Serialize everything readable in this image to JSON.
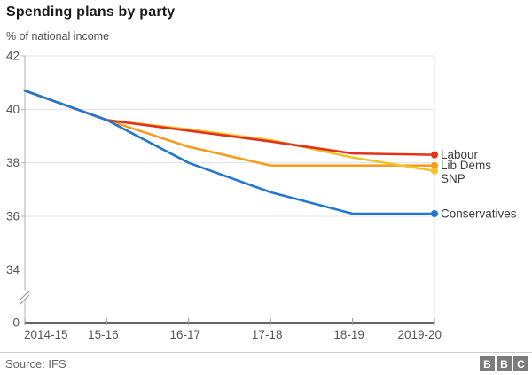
{
  "header": {
    "title": "Spending plans by party",
    "subtitle": "% of national income"
  },
  "footer": {
    "source": "Source: IFS",
    "logo_letters": [
      "B",
      "B",
      "C"
    ]
  },
  "chart_data": {
    "type": "line",
    "title": "Spending plans by party",
    "ylabel": "% of national income",
    "categories": [
      "2014-15",
      "15-16",
      "16-17",
      "17-18",
      "18-19",
      "2019-20"
    ],
    "y_ticks": [
      42,
      40,
      38,
      36,
      34
    ],
    "y_axis_break": true,
    "y_base_tick": "0",
    "ylim_shown": [
      34,
      42
    ],
    "grid": "horizontal",
    "legend_position": "right-of-line-ends",
    "series": [
      {
        "name": "Labour",
        "color": "#e2331a",
        "values": [
          40.7,
          39.6,
          39.2,
          38.8,
          38.35,
          38.3
        ],
        "label_dy": 0
      },
      {
        "name": "Lib Dems",
        "color": "#f59d20",
        "values": [
          40.7,
          39.6,
          38.6,
          37.9,
          37.9,
          37.9
        ],
        "label_dy": 0
      },
      {
        "name": "SNP",
        "color": "#f0c32e",
        "values": [
          40.7,
          39.6,
          39.25,
          38.85,
          38.2,
          37.7
        ],
        "label_dy": 9
      },
      {
        "name": "Conservatives",
        "color": "#2178cf",
        "values": [
          40.7,
          39.6,
          38.0,
          36.9,
          36.1,
          36.1
        ],
        "label_dy": 0
      }
    ],
    "colors": {
      "gridline": "#e0e0e0",
      "y_axis": "#b0b0b0",
      "x_axis": "#666666",
      "tick": "#999999",
      "axis_label": "#555555",
      "legend_label": "#3d3d3d"
    }
  }
}
